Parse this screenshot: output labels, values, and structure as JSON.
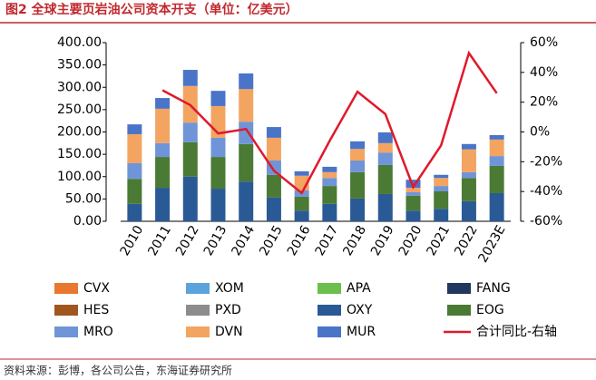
{
  "chart_data": {
    "type": "bar",
    "title": "图2 全球主要页岩油公司资本开支（单位：亿美元）",
    "source": "资料来源：彭博，各公司公告，东海证券研究所",
    "categories": [
      "2010",
      "2011",
      "2012",
      "2013",
      "2014",
      "2015",
      "2016",
      "2017",
      "2018",
      "2019",
      "2020",
      "2021",
      "2022",
      "2023E"
    ],
    "ylim": [
      0,
      400
    ],
    "yticks": [
      {
        "value": 0,
        "label": "0.00"
      },
      {
        "value": 50,
        "label": "50.00"
      },
      {
        "value": 100,
        "label": "100.00"
      },
      {
        "value": 150,
        "label": "150.00"
      },
      {
        "value": 200,
        "label": "200.00"
      },
      {
        "value": 250,
        "label": "250.00"
      },
      {
        "value": 300,
        "label": "300.00"
      },
      {
        "value": 350,
        "label": "350.00"
      },
      {
        "value": 400,
        "label": "400.00"
      }
    ],
    "y2lim": [
      -60,
      60
    ],
    "y2ticks": [
      {
        "value": -60,
        "label": "-60%"
      },
      {
        "value": -40,
        "label": "-40%"
      },
      {
        "value": -20,
        "label": "-20%"
      },
      {
        "value": 0,
        "label": "0%"
      },
      {
        "value": 20,
        "label": "20%"
      },
      {
        "value": 40,
        "label": "40%"
      },
      {
        "value": 60,
        "label": "60%"
      }
    ],
    "series": [
      {
        "name": "CVX",
        "color": "#e8782e",
        "values": [
          0,
          0,
          0,
          0,
          0,
          0,
          0,
          0,
          0,
          0,
          0,
          0,
          0,
          0
        ]
      },
      {
        "name": "XOM",
        "color": "#5ba3dc",
        "values": [
          0,
          0,
          0,
          0,
          0,
          0,
          0,
          0,
          0,
          0,
          0,
          0,
          0,
          0
        ]
      },
      {
        "name": "APA",
        "color": "#6cbf4a",
        "values": [
          0,
          0,
          0,
          0,
          0,
          0,
          0,
          0,
          0,
          0,
          0,
          0,
          0,
          0
        ]
      },
      {
        "name": "FANG",
        "color": "#22375e",
        "values": [
          0,
          0,
          0,
          0,
          0,
          0,
          0,
          0,
          0,
          0,
          0,
          0,
          0,
          0
        ]
      },
      {
        "name": "HES",
        "color": "#a0561e",
        "values": [
          0,
          0,
          0,
          0,
          0,
          0,
          0,
          0,
          0,
          0,
          0,
          0,
          0,
          0
        ]
      },
      {
        "name": "PXD",
        "color": "#8c8c8c",
        "values": [
          0,
          0,
          0,
          0,
          0,
          0,
          0,
          0,
          0,
          0,
          0,
          0,
          0,
          0
        ]
      },
      {
        "name": "OXY",
        "color": "#2a5a96",
        "values": [
          39,
          75,
          100,
          73,
          89,
          53,
          24,
          39,
          51,
          61,
          24,
          28,
          45,
          63
        ]
      },
      {
        "name": "EOG",
        "color": "#4a7a34",
        "values": [
          56,
          69,
          77,
          71,
          84,
          51,
          31,
          40,
          59,
          65,
          33,
          39,
          52,
          61
        ]
      },
      {
        "name": "MRO",
        "color": "#6f95d8",
        "values": [
          35,
          31,
          44,
          43,
          50,
          32,
          14,
          18,
          26,
          28,
          8,
          12,
          13,
          22
        ]
      },
      {
        "name": "DVN",
        "color": "#f4a461",
        "values": [
          65,
          77,
          82,
          71,
          73,
          51,
          33,
          13,
          26,
          21,
          10,
          18,
          51,
          37
        ]
      },
      {
        "name": "MUR",
        "color": "#4a74c8",
        "values": [
          22,
          24,
          36,
          34,
          35,
          24,
          10,
          12,
          17,
          24,
          18,
          7,
          12,
          10
        ]
      },
      {
        "name": "合计同比-右轴",
        "color": "#e0192c",
        "type": "line",
        "axis": "y2",
        "values": [
          null,
          28,
          18,
          -1,
          2,
          -26,
          -41,
          -6,
          27,
          12,
          -37,
          -9,
          53,
          26
        ]
      }
    ]
  }
}
